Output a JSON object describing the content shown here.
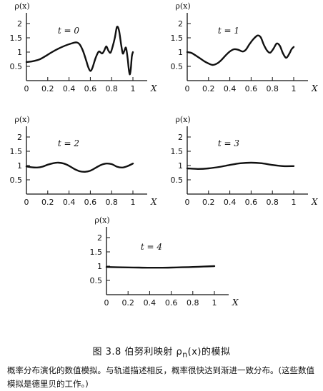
{
  "chart_data": [
    {
      "type": "line",
      "ylabel": "ρ(x)",
      "xlabel": "X",
      "panel_label": "t = 0",
      "x_ticks": [
        "0",
        "0.2",
        "0.4",
        "0.6",
        "0.8",
        "1"
      ],
      "y_ticks": [
        "0.5",
        "1",
        "1.5",
        "2"
      ],
      "xlim": [
        0,
        1
      ],
      "ylim": [
        0,
        2.3
      ],
      "x": [
        0,
        0.06,
        0.12,
        0.18,
        0.24,
        0.3,
        0.36,
        0.42,
        0.47,
        0.5,
        0.53,
        0.56,
        0.58,
        0.6,
        0.62,
        0.65,
        0.68,
        0.71,
        0.73,
        0.75,
        0.77,
        0.79,
        0.81,
        0.83,
        0.85,
        0.87,
        0.89,
        0.905,
        0.92,
        0.935,
        0.95,
        0.96,
        0.97,
        0.98,
        0.99,
        1.0
      ],
      "y": [
        0.65,
        0.68,
        0.74,
        0.86,
        1.0,
        1.12,
        1.22,
        1.3,
        1.34,
        1.27,
        1.05,
        0.72,
        0.48,
        0.34,
        0.45,
        0.8,
        1.02,
        0.95,
        1.05,
        1.2,
        1.05,
        0.98,
        1.2,
        1.5,
        1.88,
        1.75,
        1.25,
        0.95,
        1.05,
        1.15,
        0.8,
        0.45,
        0.22,
        0.4,
        0.85,
        1.0
      ]
    },
    {
      "type": "line",
      "ylabel": "ρ(x)",
      "xlabel": "X",
      "panel_label": "t = 1",
      "x_ticks": [
        "0",
        "0.2",
        "0.4",
        "0.6",
        "0.8",
        "1"
      ],
      "y_ticks": [
        "0.5",
        "1",
        "1.5",
        "2"
      ],
      "xlim": [
        0,
        1
      ],
      "ylim": [
        0,
        2.3
      ],
      "x": [
        0,
        0.04,
        0.08,
        0.12,
        0.16,
        0.2,
        0.24,
        0.28,
        0.32,
        0.36,
        0.4,
        0.44,
        0.48,
        0.52,
        0.55,
        0.58,
        0.62,
        0.66,
        0.69,
        0.72,
        0.75,
        0.78,
        0.81,
        0.84,
        0.87,
        0.9,
        0.93,
        0.96,
        0.98,
        1.0
      ],
      "y": [
        1.0,
        0.97,
        0.88,
        0.78,
        0.68,
        0.6,
        0.55,
        0.6,
        0.72,
        0.88,
        1.02,
        1.1,
        1.08,
        1.02,
        1.08,
        1.25,
        1.45,
        1.58,
        1.52,
        1.25,
        1.05,
        0.98,
        1.12,
        1.3,
        1.22,
        0.95,
        0.8,
        0.95,
        1.1,
        1.18
      ]
    },
    {
      "type": "line",
      "ylabel": "ρ(x)",
      "xlabel": "X",
      "panel_label": "t = 2",
      "x_ticks": [
        "0",
        "0.2",
        "0.4",
        "0.6",
        "0.8",
        "1"
      ],
      "y_ticks": [
        "0.5",
        "1",
        "1.5",
        "2"
      ],
      "xlim": [
        0,
        1
      ],
      "ylim": [
        0,
        2.3
      ],
      "x": [
        0,
        0.05,
        0.1,
        0.15,
        0.2,
        0.25,
        0.3,
        0.35,
        0.4,
        0.45,
        0.5,
        0.55,
        0.6,
        0.65,
        0.7,
        0.75,
        0.8,
        0.85,
        0.9,
        0.95,
        1.0
      ],
      "y": [
        0.97,
        0.94,
        0.93,
        0.96,
        1.03,
        1.08,
        1.1,
        1.07,
        0.99,
        0.88,
        0.8,
        0.78,
        0.82,
        0.92,
        1.02,
        1.07,
        1.05,
        0.96,
        0.93,
        0.98,
        1.07
      ]
    },
    {
      "type": "line",
      "ylabel": "ρ(x)",
      "xlabel": "X",
      "panel_label": "t = 3",
      "x_ticks": [
        "0",
        "0.2",
        "0.4",
        "0.6",
        "0.8",
        "1"
      ],
      "y_ticks": [
        "0.5",
        "1",
        "1.5",
        "2"
      ],
      "xlim": [
        0,
        1
      ],
      "ylim": [
        0,
        2.3
      ],
      "x": [
        0,
        0.1,
        0.2,
        0.3,
        0.4,
        0.5,
        0.6,
        0.7,
        0.8,
        0.9,
        1.0
      ],
      "y": [
        0.9,
        0.88,
        0.9,
        0.95,
        1.02,
        1.08,
        1.1,
        1.08,
        1.02,
        0.98,
        0.98
      ]
    },
    {
      "type": "line",
      "ylabel": "ρ(x)",
      "xlabel": "X",
      "panel_label": "t = 4",
      "x_ticks": [
        "0",
        "0.2",
        "0.4",
        "0.6",
        "0.8",
        "1"
      ],
      "y_ticks": [
        "0.5",
        "1",
        "1.5",
        "2"
      ],
      "xlim": [
        0,
        1
      ],
      "ylim": [
        0,
        2.3
      ],
      "x": [
        0,
        0.1,
        0.2,
        0.3,
        0.4,
        0.5,
        0.6,
        0.7,
        0.8,
        0.9,
        1.0
      ],
      "y": [
        0.97,
        0.96,
        0.955,
        0.95,
        0.945,
        0.945,
        0.95,
        0.96,
        0.97,
        0.985,
        1.0
      ]
    }
  ],
  "caption": {
    "title": "图 3.8   伯努利映射 ρ",
    "title_sub": "n",
    "title_tail": "(x)的模拟",
    "text": "概率分布演化的数值模拟。与轨道描述相反，概率很快达到渐进一致分布。(这些数值模拟是德里贝的工作。)"
  }
}
